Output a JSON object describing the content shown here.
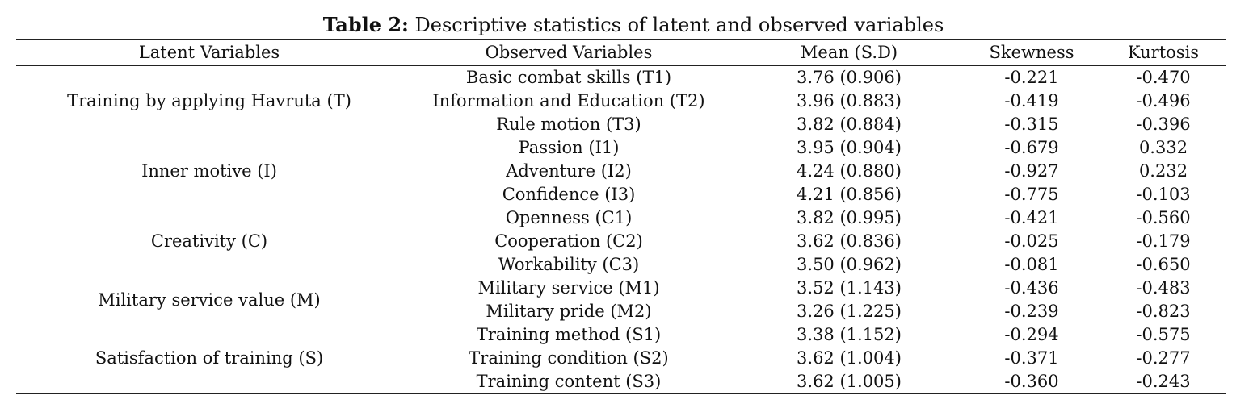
{
  "caption": {
    "label": "Table 2:",
    "text": " Descriptive statistics of latent and observed variables"
  },
  "headers": [
    "Latent Variables",
    "Observed Variables",
    "Mean (S.D)",
    "Skewness",
    "Kurtosis"
  ],
  "groups": [
    {
      "latent": "Training by applying Havruta (T)",
      "rows": [
        {
          "observed": "Basic combat skills (T1)",
          "mean": "3.76 (0.906)",
          "skewness": "-0.221",
          "kurtosis": "-0.470"
        },
        {
          "observed": "Information and Education (T2)",
          "mean": "3.96 (0.883)",
          "skewness": "-0.419",
          "kurtosis": "-0.496"
        },
        {
          "observed": "Rule motion (T3)",
          "mean": "3.82 (0.884)",
          "skewness": "-0.315",
          "kurtosis": "-0.396"
        }
      ]
    },
    {
      "latent": "Inner motive (I)",
      "rows": [
        {
          "observed": "Passion (I1)",
          "mean": "3.95 (0.904)",
          "skewness": "-0.679",
          "kurtosis": "0.332"
        },
        {
          "observed": "Adventure (I2)",
          "mean": "4.24 (0.880)",
          "skewness": "-0.927",
          "kurtosis": "0.232"
        },
        {
          "observed": "Confidence (I3)",
          "mean": "4.21 (0.856)",
          "skewness": "-0.775",
          "kurtosis": "-0.103"
        }
      ]
    },
    {
      "latent": "Creativity (C)",
      "rows": [
        {
          "observed": "Openness (C1)",
          "mean": "3.82 (0.995)",
          "skewness": "-0.421",
          "kurtosis": "-0.560"
        },
        {
          "observed": "Cooperation (C2)",
          "mean": "3.62 (0.836)",
          "skewness": "-0.025",
          "kurtosis": "-0.179"
        },
        {
          "observed": "Workability (C3)",
          "mean": "3.50 (0.962)",
          "skewness": "-0.081",
          "kurtosis": "-0.650"
        }
      ]
    },
    {
      "latent": "Military service value (M)",
      "rows": [
        {
          "observed": "Military service (M1)",
          "mean": "3.52 (1.143)",
          "skewness": "-0.436",
          "kurtosis": "-0.483"
        },
        {
          "observed": "Military pride (M2)",
          "mean": "3.26 (1.225)",
          "skewness": "-0.239",
          "kurtosis": "-0.823"
        }
      ]
    },
    {
      "latent": "Satisfaction of training (S)",
      "rows": [
        {
          "observed": "Training method (S1)",
          "mean": "3.38 (1.152)",
          "skewness": "-0.294",
          "kurtosis": "-0.575"
        },
        {
          "observed": "Training condition (S2)",
          "mean": "3.62 (1.004)",
          "skewness": "-0.371",
          "kurtosis": "-0.277"
        },
        {
          "observed": "Training content (S3)",
          "mean": "3.62 (1.005)",
          "skewness": "-0.360",
          "kurtosis": "-0.243"
        }
      ]
    }
  ]
}
